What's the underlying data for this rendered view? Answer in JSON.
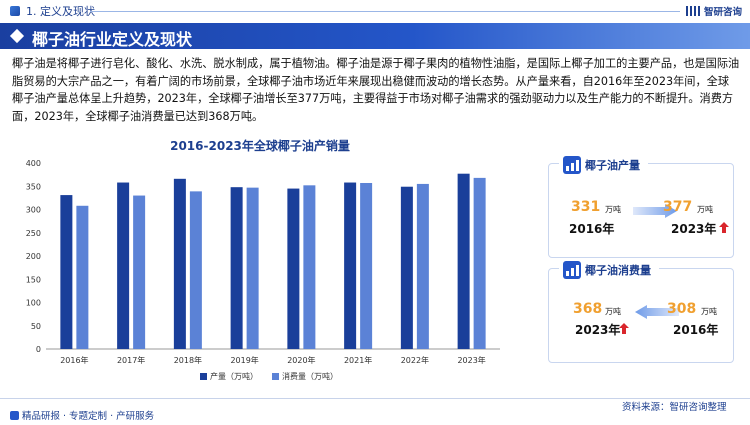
{
  "header": {
    "section_label": "1. 定义及现状",
    "brand": "智研咨询"
  },
  "title": "椰子油行业定义及现状",
  "intro": "椰子油是将椰子进行皂化、酸化、水洗、脱水制成，属于植物油。椰子油是源于椰子果肉的植物性油脂，是国际上椰子加工的主要产品，也是国际油脂贸易的大宗产品之一，有着广阔的市场前景，全球椰子油市场近年来展现出稳健而波动的增长态势。从产量来看，自2016年至2023年间，全球椰子油产量总体呈上升趋势，2023年，全球椰子油增长至377万吨，主要得益于市场对椰子油需求的强劲驱动力以及生产能力的不断提升。消费方面，2023年，全球椰子油消费量已达到368万吨。",
  "chart_data": {
    "type": "bar",
    "title": "2016-2023年全球椰子油产销量",
    "categories": [
      "2016年",
      "2017年",
      "2018年",
      "2019年",
      "2020年",
      "2021年",
      "2022年",
      "2023年"
    ],
    "series": [
      {
        "name": "产量（万吨）",
        "color": "#1a3f9a",
        "values": [
          331,
          358,
          366,
          348,
          345,
          358,
          349,
          377
        ]
      },
      {
        "name": "消费量（万吨）",
        "color": "#5b82d6",
        "values": [
          308,
          330,
          339,
          347,
          352,
          357,
          355,
          368
        ]
      }
    ],
    "yticks": [
      "0",
      "50",
      "100",
      "150",
      "200",
      "250",
      "300",
      "350",
      "400"
    ],
    "ylim": [
      0,
      400
    ],
    "grid": false,
    "legend": "bottom"
  },
  "cards": {
    "production": {
      "title": "椰子油产量",
      "from_value": "331",
      "from_unit": "万吨",
      "from_year": "2016年",
      "to_value": "377",
      "to_unit": "万吨",
      "to_year": "2023年"
    },
    "consumption": {
      "title": "椰子油消费量",
      "left_value": "368",
      "left_unit": "万吨",
      "left_year": "2023年",
      "right_value": "308",
      "right_unit": "万吨",
      "right_year": "2016年"
    }
  },
  "footer": {
    "left": "精品研报 · 专题定制 · 产研服务",
    "right": "资料来源：智研咨询整理"
  },
  "colors": {
    "brand_blue": "#1d3f8f",
    "accent_orange": "#f0a030",
    "up_arrow_red": "#d9262c"
  }
}
